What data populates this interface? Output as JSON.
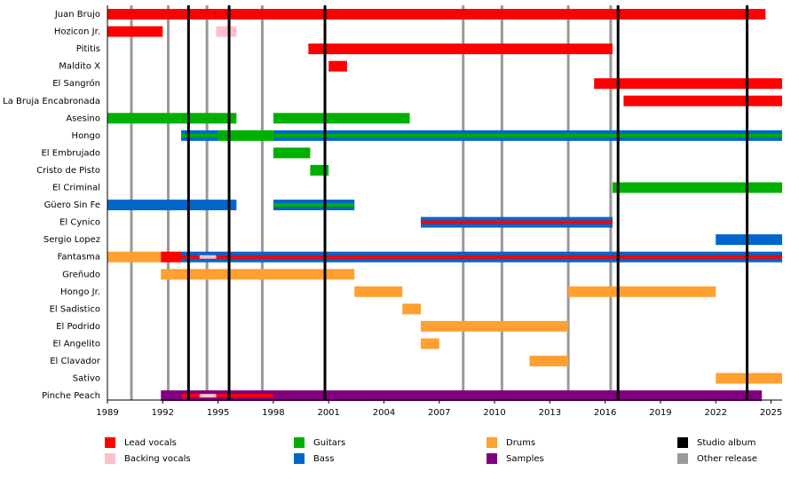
{
  "chart_data": {
    "type": "timeline",
    "xlim": [
      1989,
      2025.6
    ],
    "xticks": [
      1989,
      1992,
      1995,
      1998,
      2001,
      2004,
      2007,
      2010,
      2013,
      2016,
      2019,
      2022,
      2025
    ],
    "roles": [
      {
        "name": "Lead vocals",
        "color": "#ff0000"
      },
      {
        "name": "Backing vocals",
        "color": "#ffc0cb"
      },
      {
        "name": "Guitars",
        "color": "#00b000"
      },
      {
        "name": "Bass",
        "color": "#0066cc"
      },
      {
        "name": "Drums",
        "color": "#ffa030"
      },
      {
        "name": "Samples",
        "color": "#800080"
      }
    ],
    "lines": [
      {
        "name": "Studio album",
        "color": "#000000",
        "years": [
          1993.4,
          1995.6,
          2000.8,
          2016.7,
          2023.7
        ]
      },
      {
        "name": "Other release",
        "color": "#999999",
        "years": [
          1990.3,
          1992.3,
          1994.4,
          1997.4,
          2008.3,
          2010.4,
          2014.0,
          2016.3
        ]
      }
    ],
    "members": [
      {
        "name": "Juan Brujo",
        "segments": [
          {
            "role": "Lead vocals",
            "start": 1989,
            "end": 2024.7
          }
        ]
      },
      {
        "name": "Hozicon Jr.",
        "segments": [
          {
            "role": "Lead vocals",
            "start": 1989,
            "end": 1992.0
          },
          {
            "role": "Backing vocals",
            "start": 1994.9,
            "end": 1996.0
          }
        ]
      },
      {
        "name": "Pititis",
        "segments": [
          {
            "role": "Lead vocals",
            "start": 1999.9,
            "end": 2016.4
          }
        ]
      },
      {
        "name": "Maldito X",
        "segments": [
          {
            "role": "Lead vocals",
            "start": 2001.0,
            "end": 2002.0
          }
        ]
      },
      {
        "name": "El Sangrón",
        "segments": [
          {
            "role": "Lead vocals",
            "start": 2015.4,
            "end": 2025.6
          }
        ]
      },
      {
        "name": "La Bruja Encabronada",
        "segments": [
          {
            "role": "Lead vocals",
            "start": 2017.0,
            "end": 2025.6
          }
        ]
      },
      {
        "name": "Asesino",
        "segments": [
          {
            "role": "Guitars",
            "start": 1989,
            "end": 1996.0
          },
          {
            "role": "Guitars",
            "start": 1998.0,
            "end": 2005.4
          }
        ]
      },
      {
        "name": "Hongo",
        "segments": [
          {
            "role": "Bass",
            "start": 1993.0,
            "end": 1995.0
          },
          {
            "role": "Guitars",
            "start": 1995.0,
            "end": 1998.0
          },
          {
            "role": "Bass",
            "start": 1998.0,
            "end": 2025.6
          },
          {
            "role": "Guitars",
            "start": 1993.0,
            "end": 2025.6
          }
        ]
      },
      {
        "name": "El Embrujado",
        "segments": [
          {
            "role": "Guitars",
            "start": 1998.0,
            "end": 2000.0
          }
        ]
      },
      {
        "name": "Cristo de Pisto",
        "segments": [
          {
            "role": "Guitars",
            "start": 2000.0,
            "end": 2001.0
          }
        ]
      },
      {
        "name": "El Criminal",
        "segments": [
          {
            "role": "Guitars",
            "start": 2016.4,
            "end": 2025.6
          }
        ]
      },
      {
        "name": "Güero Sin Fe",
        "segments": [
          {
            "role": "Bass",
            "start": 1989,
            "end": 1996.0
          },
          {
            "role": "Bass",
            "start": 1998.0,
            "end": 2002.4
          },
          {
            "role": "Guitars",
            "start": 1998.0,
            "end": 2002.4
          }
        ]
      },
      {
        "name": "El Cynico",
        "segments": [
          {
            "role": "Bass",
            "start": 2006.0,
            "end": 2016.4
          },
          {
            "role": "Lead vocals",
            "start": 2006.0,
            "end": 2016.4
          }
        ]
      },
      {
        "name": "Sergio Lopez",
        "segments": [
          {
            "role": "Bass",
            "start": 2022.0,
            "end": 2025.6
          }
        ]
      },
      {
        "name": "Fantasma",
        "segments": [
          {
            "role": "Drums",
            "start": 1989,
            "end": 1991.9
          },
          {
            "role": "Lead vocals",
            "start": 1991.9,
            "end": 1993.0
          },
          {
            "role": "Bass",
            "start": 1993.0,
            "end": 2025.6
          },
          {
            "role": "Lead vocals",
            "start": 1993.0,
            "end": 2025.6
          },
          {
            "role": "Backing vocals",
            "start": 1994.0,
            "end": 1994.9
          }
        ]
      },
      {
        "name": "Greñudo",
        "segments": [
          {
            "role": "Drums",
            "start": 1991.9,
            "end": 2002.4
          }
        ]
      },
      {
        "name": "Hongo Jr.",
        "segments": [
          {
            "role": "Drums",
            "start": 2002.4,
            "end": 2005.0
          },
          {
            "role": "Drums",
            "start": 2014.0,
            "end": 2022.0
          }
        ]
      },
      {
        "name": "El Sadistico",
        "segments": [
          {
            "role": "Drums",
            "start": 2005.0,
            "end": 2006.0
          }
        ]
      },
      {
        "name": "El Podrido",
        "segments": [
          {
            "role": "Drums",
            "start": 2006.0,
            "end": 2014.0
          }
        ]
      },
      {
        "name": "El Angelito",
        "segments": [
          {
            "role": "Drums",
            "start": 2006.0,
            "end": 2007.0
          }
        ]
      },
      {
        "name": "El Clavador",
        "segments": [
          {
            "role": "Drums",
            "start": 2011.9,
            "end": 2014.0
          }
        ]
      },
      {
        "name": "Sativo",
        "segments": [
          {
            "role": "Drums",
            "start": 2022.0,
            "end": 2025.6
          }
        ]
      },
      {
        "name": "Pinche Peach",
        "segments": [
          {
            "role": "Samples",
            "start": 1991.9,
            "end": 2024.5
          },
          {
            "role": "Lead vocals",
            "start": 1993.0,
            "end": 1998.0
          },
          {
            "role": "Backing vocals",
            "start": 1994.0,
            "end": 1994.9
          }
        ]
      }
    ]
  }
}
